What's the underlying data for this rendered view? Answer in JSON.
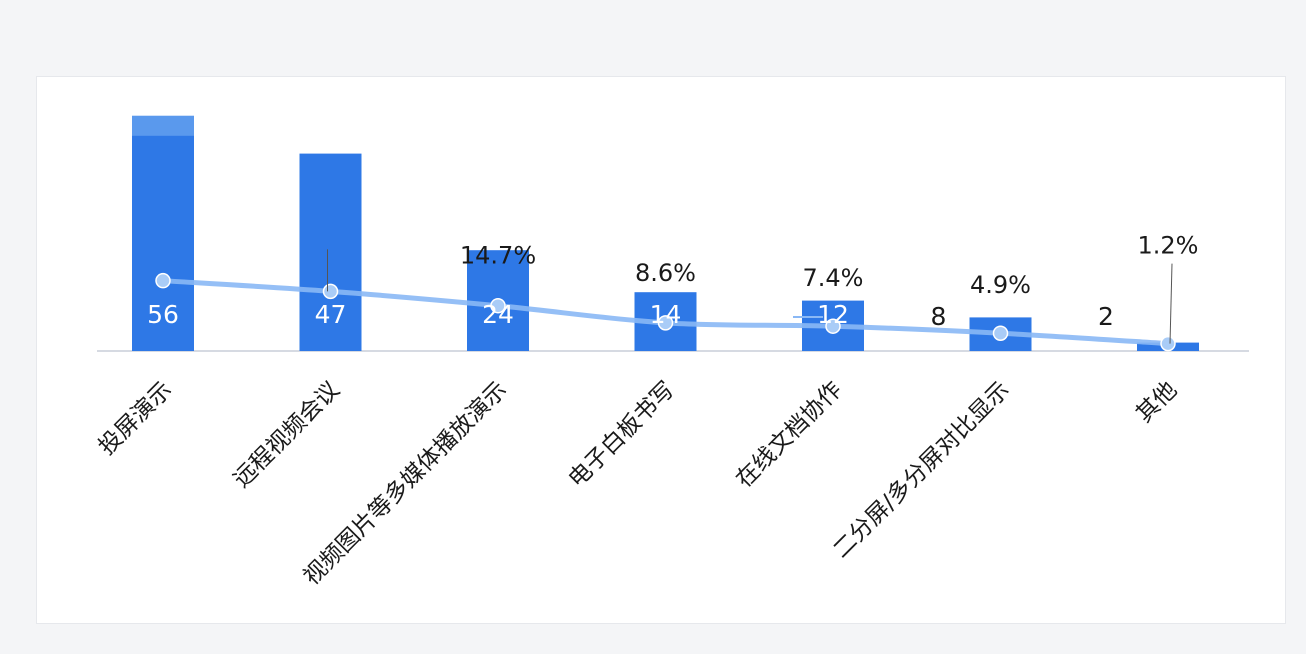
{
  "chart_data": {
    "type": "bar",
    "categories": [
      "投屏演示",
      "远程视频会议",
      "视频图片等多媒体播放演示",
      "电子白板书写",
      "在线文档协作",
      "二分屏/多分屏对比显示",
      "其他"
    ],
    "series": [
      {
        "values": [
          56,
          47,
          24,
          14,
          12,
          8,
          2
        ],
        "color": "#2e78e6"
      },
      {
        "type": "line",
        "values": [
          null,
          null,
          14.7,
          8.6,
          7.4,
          4.9,
          1.2
        ],
        "unit": "%",
        "color": "#8ab8f5"
      }
    ],
    "bar_labels": [
      "56",
      "47",
      "24",
      "14",
      "12",
      "8",
      "2"
    ],
    "line_labels": [
      "",
      "",
      "14.7%",
      "8.6%",
      "7.4%",
      "4.9%",
      "1.2%"
    ],
    "title": "",
    "xlabel": "",
    "ylabel": "",
    "grid": false,
    "legend": "none"
  }
}
